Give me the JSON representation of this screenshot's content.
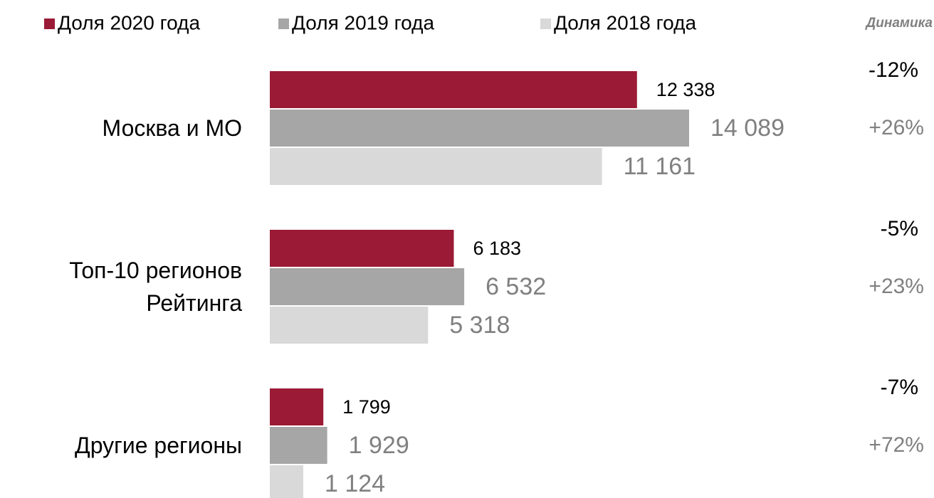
{
  "chart_data": {
    "type": "hbar",
    "categories": [
      "Москва и МО",
      "Топ-10 регионов Рейтинга",
      "Другие регионы"
    ],
    "series": [
      {
        "name": "Доля 2020 года",
        "color": "#9b1a35",
        "values": [
          12338,
          6183,
          1799
        ],
        "value_labels": [
          "12 338",
          "6 183",
          "1 799"
        ]
      },
      {
        "name": "Доля 2019 года",
        "color": "#a6a6a6",
        "values": [
          14089,
          6532,
          1929
        ],
        "value_labels": [
          "14 089",
          "6 532",
          "1 929"
        ]
      },
      {
        "name": "Доля 2018 года",
        "color": "#d9d9d9",
        "values": [
          11161,
          5318,
          1124
        ],
        "value_labels": [
          "11 161",
          "5 318",
          "1 124"
        ]
      }
    ],
    "dynamics": {
      "title": "Динамика",
      "values": [
        [
          "-12%",
          "+26%"
        ],
        [
          "-5%",
          "+23%"
        ],
        [
          "-7%",
          "+72%"
        ]
      ]
    }
  }
}
